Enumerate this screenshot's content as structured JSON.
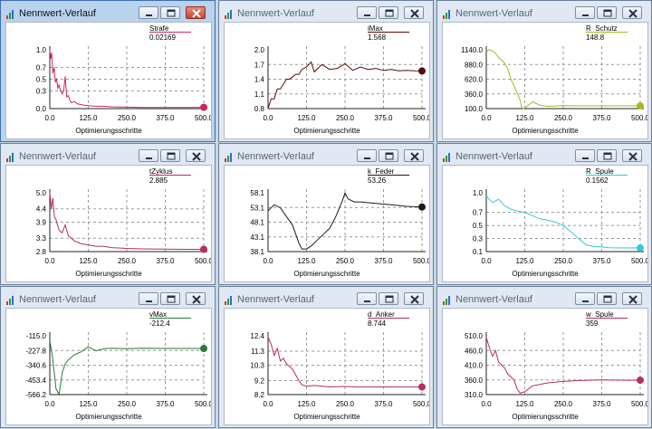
{
  "window_title": "Nennwert-Verlauf",
  "xlabel": "Optimierungsschritte",
  "x_ticks": [
    "0.0",
    "125.0",
    "250.0",
    "375.0",
    "500.0"
  ],
  "windows": [
    {
      "name": "Strafe",
      "value": "0.02169",
      "color": "#c8285f",
      "active": true,
      "y_ticks": [
        "1.0",
        "0.7",
        "0.5",
        "0.3",
        "0.0"
      ],
      "ylim": [
        0,
        1.0
      ],
      "chart_data": {
        "type": "line",
        "x": [
          0,
          3,
          6,
          10,
          14,
          18,
          22,
          26,
          30,
          35,
          40,
          45,
          50,
          55,
          60,
          65,
          70,
          80,
          90,
          100,
          110,
          125,
          150,
          175,
          200,
          250,
          300,
          375,
          450,
          500
        ],
        "y": [
          1.0,
          0.85,
          0.95,
          0.6,
          0.7,
          0.45,
          0.5,
          0.35,
          0.4,
          0.3,
          0.25,
          0.3,
          0.55,
          0.2,
          0.22,
          0.15,
          0.1,
          0.12,
          0.08,
          0.07,
          0.06,
          0.05,
          0.04,
          0.04,
          0.03,
          0.025,
          0.02,
          0.02,
          0.02,
          0.02169
        ]
      }
    },
    {
      "name": "iMax",
      "value": "1.568",
      "color": "#5a0a0a",
      "active": false,
      "y_ticks": [
        "2.0",
        "1.7",
        "1.4",
        "1.1",
        "0.8"
      ],
      "ylim": [
        0.8,
        2.0
      ],
      "chart_data": {
        "type": "line",
        "x": [
          0,
          10,
          20,
          30,
          40,
          50,
          60,
          70,
          80,
          90,
          100,
          110,
          125,
          140,
          150,
          175,
          200,
          225,
          250,
          275,
          300,
          325,
          350,
          375,
          400,
          425,
          450,
          475,
          500
        ],
        "y": [
          0.8,
          1.0,
          1.0,
          1.2,
          1.2,
          1.3,
          1.4,
          1.4,
          1.45,
          1.5,
          1.5,
          1.6,
          1.65,
          1.75,
          1.55,
          1.7,
          1.6,
          1.62,
          1.72,
          1.58,
          1.65,
          1.6,
          1.62,
          1.58,
          1.6,
          1.57,
          1.58,
          1.57,
          1.568
        ]
      }
    },
    {
      "name": "R_Schutz",
      "value": "148.8",
      "color": "#a6b81e",
      "active": false,
      "y_ticks": [
        "1140.0",
        "880.0",
        "620.0",
        "360.0",
        "100.0"
      ],
      "ylim": [
        100,
        1140
      ],
      "chart_data": {
        "type": "line",
        "x": [
          0,
          10,
          20,
          30,
          40,
          50,
          60,
          70,
          80,
          90,
          100,
          110,
          115,
          120,
          125,
          150,
          175,
          200,
          250,
          300,
          375,
          450,
          500
        ],
        "y": [
          1100,
          1140,
          1120,
          1080,
          1000,
          960,
          900,
          800,
          620,
          500,
          380,
          250,
          120,
          100,
          110,
          220,
          160,
          140,
          155,
          150,
          150,
          149,
          148.8
        ]
      }
    },
    {
      "name": "tZyklus",
      "value": "2.885",
      "color": "#b52d63",
      "active": false,
      "y_ticks": [
        "5.0",
        "4.4",
        "3.9",
        "3.3",
        "2.8"
      ],
      "ylim": [
        2.8,
        5.0
      ],
      "chart_data": {
        "type": "line",
        "x": [
          0,
          5,
          10,
          15,
          20,
          30,
          40,
          50,
          60,
          70,
          80,
          100,
          125,
          150,
          175,
          200,
          250,
          300,
          375,
          450,
          500
        ],
        "y": [
          5.0,
          4.4,
          4.8,
          4.1,
          4.0,
          3.6,
          3.5,
          3.8,
          3.4,
          3.3,
          3.2,
          3.1,
          3.05,
          3.0,
          3.0,
          2.95,
          2.92,
          2.9,
          2.89,
          2.885,
          2.885
        ]
      }
    },
    {
      "name": "k_Feder",
      "value": "53.26",
      "color": "#1a1a1a",
      "active": false,
      "y_ticks": [
        "58.1",
        "53.1",
        "48.1",
        "43.1",
        "38.1"
      ],
      "ylim": [
        38.1,
        58.1
      ],
      "chart_data": {
        "type": "line",
        "x": [
          0,
          20,
          40,
          60,
          80,
          100,
          110,
          125,
          140,
          160,
          180,
          200,
          220,
          240,
          250,
          260,
          280,
          300,
          350,
          400,
          450,
          500
        ],
        "y": [
          52,
          54,
          53,
          50,
          47,
          41,
          39,
          39,
          40,
          42,
          44,
          46,
          50,
          55,
          58,
          56,
          55,
          55,
          54.5,
          54,
          53.5,
          53.26
        ]
      }
    },
    {
      "name": "R_Spule",
      "value": "0.1562",
      "color": "#35c6e0",
      "active": false,
      "y_ticks": [
        "1.0",
        "0.7",
        "0.5",
        "0.3",
        "0.1"
      ],
      "ylim": [
        0.1,
        1.0
      ],
      "chart_data": {
        "type": "line",
        "x": [
          0,
          20,
          40,
          60,
          80,
          100,
          125,
          150,
          175,
          200,
          225,
          250,
          275,
          300,
          325,
          350,
          375,
          400,
          450,
          500
        ],
        "y": [
          0.95,
          0.85,
          0.9,
          0.8,
          0.75,
          0.72,
          0.7,
          0.65,
          0.6,
          0.58,
          0.55,
          0.5,
          0.4,
          0.3,
          0.2,
          0.18,
          0.17,
          0.16,
          0.156,
          0.1562
        ]
      }
    },
    {
      "name": "vMax",
      "value": "-212.4",
      "color": "#2a7a3e",
      "active": false,
      "y_ticks": [
        "-115.0",
        "-227.8",
        "-340.6",
        "-453.4",
        "-566.2"
      ],
      "ylim": [
        -566.2,
        -115.0
      ],
      "chart_data": {
        "type": "line",
        "x": [
          0,
          10,
          20,
          30,
          40,
          50,
          60,
          80,
          100,
          125,
          150,
          175,
          200,
          250,
          300,
          375,
          450,
          500
        ],
        "y": [
          -150,
          -300,
          -520,
          -566,
          -400,
          -330,
          -300,
          -260,
          -240,
          -200,
          -230,
          -215,
          -210,
          -214,
          -211,
          -212,
          -212,
          -212.4
        ]
      }
    },
    {
      "name": "d_Anker",
      "value": "8.744",
      "color": "#b52d63",
      "active": false,
      "y_ticks": [
        "12.4",
        "11.3",
        "10.3",
        "9.2",
        "8.2"
      ],
      "ylim": [
        8.2,
        12.4
      ],
      "chart_data": {
        "type": "line",
        "x": [
          0,
          10,
          20,
          30,
          40,
          50,
          60,
          70,
          80,
          90,
          100,
          110,
          125,
          150,
          200,
          250,
          300,
          375,
          450,
          500
        ],
        "y": [
          12.3,
          11.8,
          11.0,
          11.5,
          10.6,
          10.8,
          10.4,
          10.2,
          10.0,
          9.6,
          9.2,
          8.9,
          8.8,
          8.85,
          8.75,
          8.78,
          8.74,
          8.75,
          8.74,
          8.744
        ]
      }
    },
    {
      "name": "w_Spule",
      "value": "359",
      "color": "#b52d63",
      "active": false,
      "y_ticks": [
        "510.0",
        "460.0",
        "410.0",
        "360.0",
        "310.0"
      ],
      "ylim": [
        310,
        510
      ],
      "chart_data": {
        "type": "line",
        "x": [
          0,
          10,
          20,
          30,
          40,
          50,
          60,
          70,
          80,
          90,
          100,
          110,
          125,
          150,
          200,
          250,
          300,
          375,
          450,
          500
        ],
        "y": [
          505,
          470,
          440,
          460,
          420,
          410,
          400,
          380,
          370,
          360,
          330,
          315,
          320,
          340,
          350,
          355,
          358,
          360,
          359,
          359
        ]
      }
    }
  ]
}
